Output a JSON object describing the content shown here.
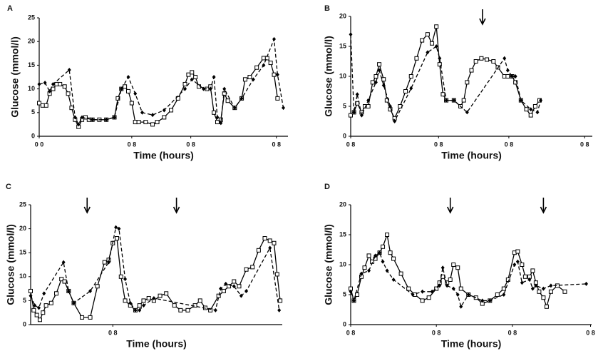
{
  "chart_data": [
    {
      "type": "line",
      "title": "A",
      "ylabel": "Glucose (mmol/l)",
      "xlabel": "Time (hours)",
      "xlim": [
        0,
        21.5
      ],
      "xticks": [
        {
          "value": 0,
          "label": "0 0"
        },
        {
          "value": 8,
          "label": "0 8"
        },
        {
          "value": 13.1,
          "label": "0 8"
        },
        {
          "value": 20.5,
          "label": "0 8"
        }
      ],
      "ylim": [
        0,
        25
      ],
      "yticks": [
        0,
        5,
        10,
        15,
        20,
        25
      ],
      "series": [
        {
          "color": "#000000",
          "marker": "square",
          "dashed": false,
          "x": [
            0,
            0.3,
            0.6,
            0.9,
            1.2,
            1.5,
            1.8,
            2.2,
            2.5,
            2.8,
            3.1,
            3.4,
            3.7,
            4,
            4.3,
            4.6,
            5.2,
            5.8,
            6.5,
            6.8,
            7.1,
            7.4,
            7.7,
            8,
            8.3,
            8.6,
            9.2,
            9.8,
            10.2,
            10.8,
            11.4,
            12,
            12.6,
            12.9,
            13.2,
            13.5,
            13.8,
            14.5,
            14.8,
            15.1,
            15.4,
            15.7,
            16,
            16.3,
            16.9,
            17.5,
            17.8,
            18.2,
            18.8,
            19.4,
            19.7,
            20,
            20.3,
            20.6
          ],
          "values": [
            7,
            6.5,
            6.5,
            9,
            10,
            11,
            11,
            10.5,
            9,
            6,
            3.5,
            2,
            3.5,
            4,
            3.5,
            3.5,
            3.5,
            3.5,
            4,
            8,
            10,
            10.5,
            9.5,
            7,
            3,
            3,
            3,
            2.5,
            3,
            4,
            5.5,
            8,
            11,
            13,
            13.5,
            12.5,
            10.5,
            10,
            10.5,
            5,
            3,
            3.5,
            9,
            7.5,
            6,
            8,
            12,
            12.5,
            14.5,
            16.5,
            16.5,
            15.5,
            13,
            8
          ]
        },
        {
          "color": "#000000",
          "marker": "diamond",
          "dashed": true,
          "x": [
            0,
            0.5,
            0.9,
            1.2,
            2.6,
            3.1,
            3.4,
            3.7,
            4.6,
            5.8,
            6.5,
            7.1,
            7.7,
            8.3,
            8.9,
            9.8,
            10.8,
            12.6,
            13.2,
            14.2,
            14.8,
            15.1,
            15.4,
            15.7,
            16,
            16.9,
            17.5,
            18.5,
            19.4,
            20.3,
            20.6,
            21.1
          ],
          "values": [
            11,
            11.3,
            9.5,
            11,
            14,
            4,
            2.5,
            4,
            3.5,
            3.5,
            4,
            10,
            12.5,
            9,
            5,
            4.5,
            5.5,
            10,
            12,
            10,
            10,
            12.5,
            4,
            2.8,
            10,
            6,
            8,
            12,
            15,
            20.5,
            13,
            6
          ]
        }
      ]
    },
    {
      "type": "line",
      "title": "B",
      "ylabel": "Glucose (mmol/l)",
      "xlabel": "Time (hours)",
      "xlim": [
        0,
        22
      ],
      "xticks": [
        {
          "value": 0,
          "label": "0 8"
        },
        {
          "value": 8,
          "label": "0 8"
        },
        {
          "value": 14.4,
          "label": "0 8"
        },
        {
          "value": 21.3,
          "label": "0 8"
        }
      ],
      "ylim": [
        0,
        20
      ],
      "yticks": [
        0,
        5,
        10,
        15,
        20
      ],
      "arrows": [
        12
      ],
      "series": [
        {
          "color": "#000000",
          "marker": "square",
          "dashed": false,
          "x": [
            0,
            0.3,
            0.6,
            1,
            1.3,
            1.6,
            2,
            2.3,
            2.6,
            3,
            3.3,
            3.6,
            4,
            4.5,
            5,
            5.5,
            6,
            6.5,
            7,
            7.4,
            7.8,
            8.1,
            8.4,
            8.7,
            9.4,
            10,
            10.3,
            10.6,
            11,
            11.4,
            11.9,
            12.4,
            13,
            13.4,
            14,
            14.3,
            14.7,
            15,
            15.5,
            16,
            16.4,
            16.8,
            17.2
          ],
          "values": [
            3.5,
            4,
            5.5,
            4,
            5,
            5,
            9,
            10,
            12,
            9.5,
            6,
            4.5,
            3,
            5,
            7.5,
            10,
            13,
            16,
            17,
            15.5,
            18.3,
            12,
            7,
            6,
            6,
            5,
            6,
            9,
            11,
            12.5,
            13,
            12.8,
            12.5,
            11.5,
            10,
            10,
            10,
            9,
            6,
            4.5,
            3.5,
            5,
            6
          ]
        },
        {
          "color": "#000000",
          "marker": "diamond",
          "dashed": true,
          "x": [
            0,
            0.3,
            0.6,
            1,
            1.6,
            2.3,
            2.6,
            3,
            3.6,
            4,
            5.5,
            7,
            7.8,
            8.1,
            8.7,
            9.4,
            10.6,
            14,
            14.3,
            14.7,
            15,
            15.5,
            16.4,
            17,
            17.3
          ],
          "values": [
            17,
            4,
            7,
            3.5,
            6,
            9,
            11,
            8.5,
            5,
            2.5,
            8,
            14,
            15,
            13,
            6,
            6,
            4,
            13,
            11,
            10,
            10,
            6,
            4.5,
            4,
            6
          ]
        }
      ]
    },
    {
      "type": "line",
      "title": "C",
      "ylabel": "Glucose (mmol/l)",
      "xlabel": "Time (hours)",
      "xlim": [
        0,
        24.5
      ],
      "xticks": [
        {
          "value": 8,
          "label": "0 8"
        }
      ],
      "ylim": [
        0,
        25
      ],
      "yticks": [
        0,
        5,
        10,
        15,
        20,
        25
      ],
      "arrows": [
        5.5,
        14.2
      ],
      "series": [
        {
          "color": "#000000",
          "marker": "square",
          "dashed": false,
          "x": [
            0,
            0.3,
            0.6,
            0.9,
            1.2,
            1.5,
            2,
            2.5,
            3,
            3.3,
            3.7,
            4.2,
            5,
            5.8,
            6.5,
            7.2,
            7.6,
            8,
            8.4,
            8.8,
            9.2,
            9.7,
            10.2,
            10.6,
            11,
            11.5,
            12,
            12.6,
            13.2,
            14,
            14.6,
            15.3,
            16,
            16.5,
            17,
            17.5,
            18.3,
            18.8,
            19.3,
            19.8,
            20.3,
            21,
            21.6,
            22.2,
            22.8,
            23.3,
            23.7,
            24,
            24.3
          ],
          "values": [
            7,
            3,
            2,
            1,
            2.5,
            4,
            4.5,
            6.5,
            9.5,
            9,
            7,
            4.5,
            1.5,
            1.5,
            8,
            13,
            13.5,
            17,
            18,
            10,
            5,
            4,
            3,
            4,
            5,
            5.5,
            5,
            6,
            6.5,
            4,
            3,
            3,
            4,
            5,
            3.5,
            3,
            6,
            7,
            8,
            9,
            8,
            11.5,
            12,
            15.5,
            18,
            17.5,
            17,
            10.5,
            5
          ]
        },
        {
          "color": "#000000",
          "marker": "diamond",
          "dashed": true,
          "x": [
            0,
            0.4,
            0.8,
            1.3,
            3.2,
            3.7,
            4.2,
            5.8,
            7.6,
            8.3,
            8.6,
            9.2,
            9.7,
            10.2,
            10.6,
            11,
            12,
            18,
            18.5,
            19,
            19.8,
            20.5,
            21,
            23.3,
            24.2
          ],
          "values": [
            6,
            4,
            3.5,
            6.5,
            13,
            7,
            4.5,
            7,
            13,
            20.3,
            20,
            9.5,
            4.5,
            3,
            3,
            4,
            5.5,
            3,
            7.5,
            8.5,
            8,
            6,
            7,
            16,
            3
          ]
        }
      ]
    },
    {
      "type": "line",
      "title": "D",
      "ylabel": "Glucose (mmol/l)",
      "xlabel": "Time (hours)",
      "xlim": [
        0,
        22.5
      ],
      "xticks": [
        {
          "value": 0,
          "label": "0 8"
        },
        {
          "value": 8,
          "label": "0 8"
        },
        {
          "value": 15.1,
          "label": "0 8"
        },
        {
          "value": 22.4,
          "label": "0 8"
        }
      ],
      "ylim": [
        0,
        20
      ],
      "yticks": [
        0,
        5,
        10,
        15,
        20
      ],
      "arrows": [
        9.3,
        18
      ],
      "series": [
        {
          "color": "#000000",
          "marker": "square",
          "dashed": false,
          "x": [
            0,
            0.3,
            0.6,
            1,
            1.3,
            1.7,
            2,
            2.3,
            2.7,
            3,
            3.4,
            3.7,
            4,
            4.7,
            5.4,
            6,
            6.7,
            7.3,
            8,
            8.3,
            8.6,
            9,
            9.3,
            9.6,
            10,
            10.3,
            11,
            11.7,
            12.3,
            13,
            13.7,
            14.3,
            14.7,
            15.3,
            15.6,
            16,
            16.3,
            16.7,
            17,
            17.3,
            17.6,
            18,
            18.3,
            18.7,
            19.3,
            20
          ],
          "values": [
            6,
            4,
            5,
            8,
            9.5,
            11.5,
            10.5,
            11,
            12,
            13,
            15,
            12,
            11,
            8.5,
            6,
            5,
            4,
            4.5,
            6,
            7,
            8,
            7,
            7.5,
            10,
            9.5,
            6,
            5,
            4.5,
            3.5,
            4,
            5,
            6,
            7.5,
            12,
            12.2,
            10,
            8,
            8,
            9,
            7,
            5.5,
            4.5,
            3,
            5.5,
            6.5,
            5.5
          ]
        },
        {
          "color": "#000000",
          "marker": "diamond",
          "dashed": true,
          "x": [
            0,
            0.3,
            1,
            1.7,
            2.3,
            2.7,
            3,
            3.4,
            4,
            5.8,
            6.7,
            7.6,
            8.3,
            8.6,
            9,
            9.6,
            10,
            10.3,
            11,
            12.3,
            13,
            14.3,
            15.3,
            15.6,
            16,
            16.7,
            17,
            17.3,
            18,
            18.7,
            22
          ],
          "values": [
            5.5,
            4,
            8.5,
            9,
            11.5,
            12,
            10.5,
            9,
            7.5,
            5,
            5.5,
            5.5,
            6.5,
            9.5,
            6.5,
            6,
            5,
            3,
            5,
            4,
            4,
            5,
            10,
            10.5,
            7,
            7.5,
            6,
            6.5,
            6,
            6.5,
            6.8
          ]
        }
      ]
    }
  ]
}
